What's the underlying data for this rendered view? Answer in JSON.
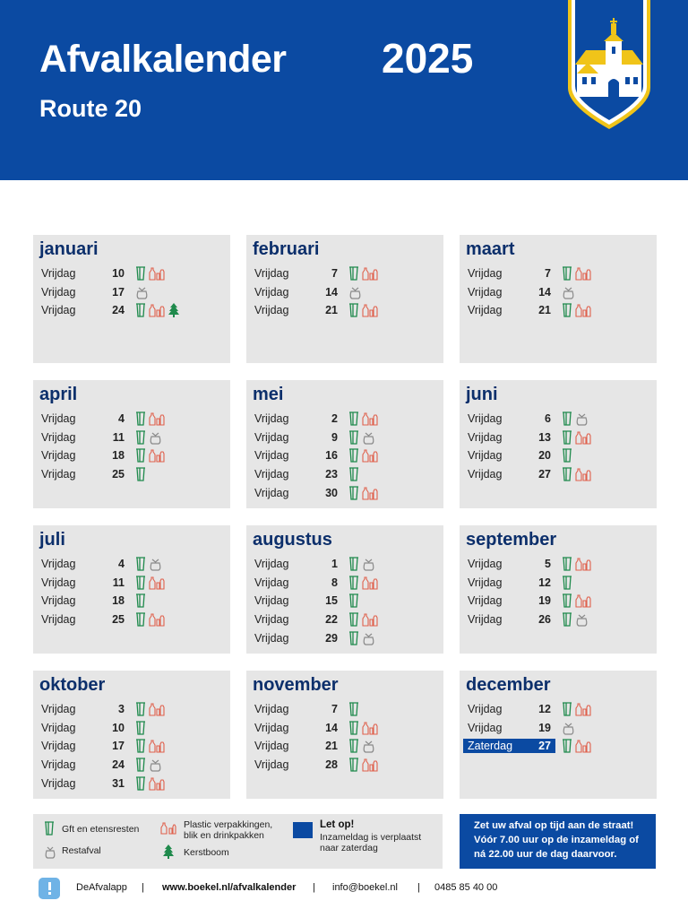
{
  "header": {
    "title": "Afvalkalender",
    "year": "2025",
    "route": "Route 20"
  },
  "colors": {
    "blue": "#0b4aa2",
    "month_title": "#0c2f6b",
    "gft": "#1f8a4c",
    "plastic": "#e0604c",
    "tree": "#1f8a4c",
    "restafval": "#8a8a8a",
    "box": "#e6e6e6"
  },
  "icon_names": {
    "gft": "gft-bin-icon",
    "plastic": "plastic-bottles-icon",
    "rest": "restafval-bag-icon",
    "tree": "christmas-tree-icon"
  },
  "months": [
    {
      "name": "januari",
      "rows": [
        {
          "day": "Vrijdag",
          "date": "10",
          "icons": [
            "gft",
            "plastic"
          ]
        },
        {
          "day": "Vrijdag",
          "date": "17",
          "icons": [
            "rest"
          ]
        },
        {
          "day": "Vrijdag",
          "date": "24",
          "icons": [
            "gft",
            "plastic",
            "tree"
          ]
        }
      ]
    },
    {
      "name": "februari",
      "rows": [
        {
          "day": "Vrijdag",
          "date": "7",
          "icons": [
            "gft",
            "plastic"
          ]
        },
        {
          "day": "Vrijdag",
          "date": "14",
          "icons": [
            "rest"
          ]
        },
        {
          "day": "Vrijdag",
          "date": "21",
          "icons": [
            "gft",
            "plastic"
          ]
        }
      ]
    },
    {
      "name": "maart",
      "rows": [
        {
          "day": "Vrijdag",
          "date": "7",
          "icons": [
            "gft",
            "plastic"
          ]
        },
        {
          "day": "Vrijdag",
          "date": "14",
          "icons": [
            "rest"
          ]
        },
        {
          "day": "Vrijdag",
          "date": "21",
          "icons": [
            "gft",
            "plastic"
          ]
        }
      ]
    },
    {
      "name": "april",
      "rows": [
        {
          "day": "Vrijdag",
          "date": "4",
          "icons": [
            "gft",
            "plastic"
          ]
        },
        {
          "day": "Vrijdag",
          "date": "11",
          "icons": [
            "gft",
            "rest"
          ]
        },
        {
          "day": "Vrijdag",
          "date": "18",
          "icons": [
            "gft",
            "plastic"
          ]
        },
        {
          "day": "Vrijdag",
          "date": "25",
          "icons": [
            "gft"
          ]
        }
      ]
    },
    {
      "name": "mei",
      "rows": [
        {
          "day": "Vrijdag",
          "date": "2",
          "icons": [
            "gft",
            "plastic"
          ]
        },
        {
          "day": "Vrijdag",
          "date": "9",
          "icons": [
            "gft",
            "rest"
          ]
        },
        {
          "day": "Vrijdag",
          "date": "16",
          "icons": [
            "gft",
            "plastic"
          ]
        },
        {
          "day": "Vrijdag",
          "date": "23",
          "icons": [
            "gft"
          ]
        },
        {
          "day": "Vrijdag",
          "date": "30",
          "icons": [
            "gft",
            "plastic"
          ]
        }
      ]
    },
    {
      "name": "juni",
      "rows": [
        {
          "day": "Vrijdag",
          "date": "6",
          "icons": [
            "gft",
            "rest"
          ]
        },
        {
          "day": "Vrijdag",
          "date": "13",
          "icons": [
            "gft",
            "plastic"
          ]
        },
        {
          "day": "Vrijdag",
          "date": "20",
          "icons": [
            "gft"
          ]
        },
        {
          "day": "Vrijdag",
          "date": "27",
          "icons": [
            "gft",
            "plastic"
          ]
        }
      ]
    },
    {
      "name": "juli",
      "rows": [
        {
          "day": "Vrijdag",
          "date": "4",
          "icons": [
            "gft",
            "rest"
          ]
        },
        {
          "day": "Vrijdag",
          "date": "11",
          "icons": [
            "gft",
            "plastic"
          ]
        },
        {
          "day": "Vrijdag",
          "date": "18",
          "icons": [
            "gft"
          ]
        },
        {
          "day": "Vrijdag",
          "date": "25",
          "icons": [
            "gft",
            "plastic"
          ]
        }
      ]
    },
    {
      "name": "augustus",
      "rows": [
        {
          "day": "Vrijdag",
          "date": "1",
          "icons": [
            "gft",
            "rest"
          ]
        },
        {
          "day": "Vrijdag",
          "date": "8",
          "icons": [
            "gft",
            "plastic"
          ]
        },
        {
          "day": "Vrijdag",
          "date": "15",
          "icons": [
            "gft"
          ]
        },
        {
          "day": "Vrijdag",
          "date": "22",
          "icons": [
            "gft",
            "plastic"
          ]
        },
        {
          "day": "Vrijdag",
          "date": "29",
          "icons": [
            "gft",
            "rest"
          ]
        }
      ]
    },
    {
      "name": "september",
      "rows": [
        {
          "day": "Vrijdag",
          "date": "5",
          "icons": [
            "gft",
            "plastic"
          ]
        },
        {
          "day": "Vrijdag",
          "date": "12",
          "icons": [
            "gft"
          ]
        },
        {
          "day": "Vrijdag",
          "date": "19",
          "icons": [
            "gft",
            "plastic"
          ]
        },
        {
          "day": "Vrijdag",
          "date": "26",
          "icons": [
            "gft",
            "rest"
          ]
        }
      ]
    },
    {
      "name": "oktober",
      "rows": [
        {
          "day": "Vrijdag",
          "date": "3",
          "icons": [
            "gft",
            "plastic"
          ]
        },
        {
          "day": "Vrijdag",
          "date": "10",
          "icons": [
            "gft"
          ]
        },
        {
          "day": "Vrijdag",
          "date": "17",
          "icons": [
            "gft",
            "plastic"
          ]
        },
        {
          "day": "Vrijdag",
          "date": "24",
          "icons": [
            "gft",
            "rest"
          ]
        },
        {
          "day": "Vrijdag",
          "date": "31",
          "icons": [
            "gft",
            "plastic"
          ]
        }
      ]
    },
    {
      "name": "november",
      "rows": [
        {
          "day": "Vrijdag",
          "date": "7",
          "icons": [
            "gft"
          ]
        },
        {
          "day": "Vrijdag",
          "date": "14",
          "icons": [
            "gft",
            "plastic"
          ]
        },
        {
          "day": "Vrijdag",
          "date": "21",
          "icons": [
            "gft",
            "rest"
          ]
        },
        {
          "day": "Vrijdag",
          "date": "28",
          "icons": [
            "gft",
            "plastic"
          ]
        }
      ]
    },
    {
      "name": "december",
      "rows": [
        {
          "day": "Vrijdag",
          "date": "12",
          "icons": [
            "gft",
            "plastic"
          ]
        },
        {
          "day": "Vrijdag",
          "date": "19",
          "icons": [
            "rest"
          ]
        },
        {
          "day": "Zaterdag",
          "date": "27",
          "icons": [
            "gft",
            "plastic"
          ],
          "highlight": true
        }
      ]
    }
  ],
  "legend": {
    "gft": "Gft en etensresten",
    "rest": "Restafval",
    "plastic_line1": "Plastic verpakkingen,",
    "plastic_line2": "blik en drinkpakken",
    "tree": "Kerstboom",
    "letop_title": "Let op!",
    "letop_line1": "Inzameldag is verplaatst",
    "letop_line2": "naar zaterdag"
  },
  "notice": {
    "line1": "Zet uw afval op tijd aan de straat!",
    "line2": "Vóór 7.00 uur op de inzameldag of",
    "line3": "ná 22.00 uur de dag daarvoor."
  },
  "footer": {
    "app": "DeAfvalapp",
    "website": "www.boekel.nl/afvalkalender",
    "email": "info@boekel.nl",
    "phone": "0485 85 40 00",
    "separator": "|"
  }
}
